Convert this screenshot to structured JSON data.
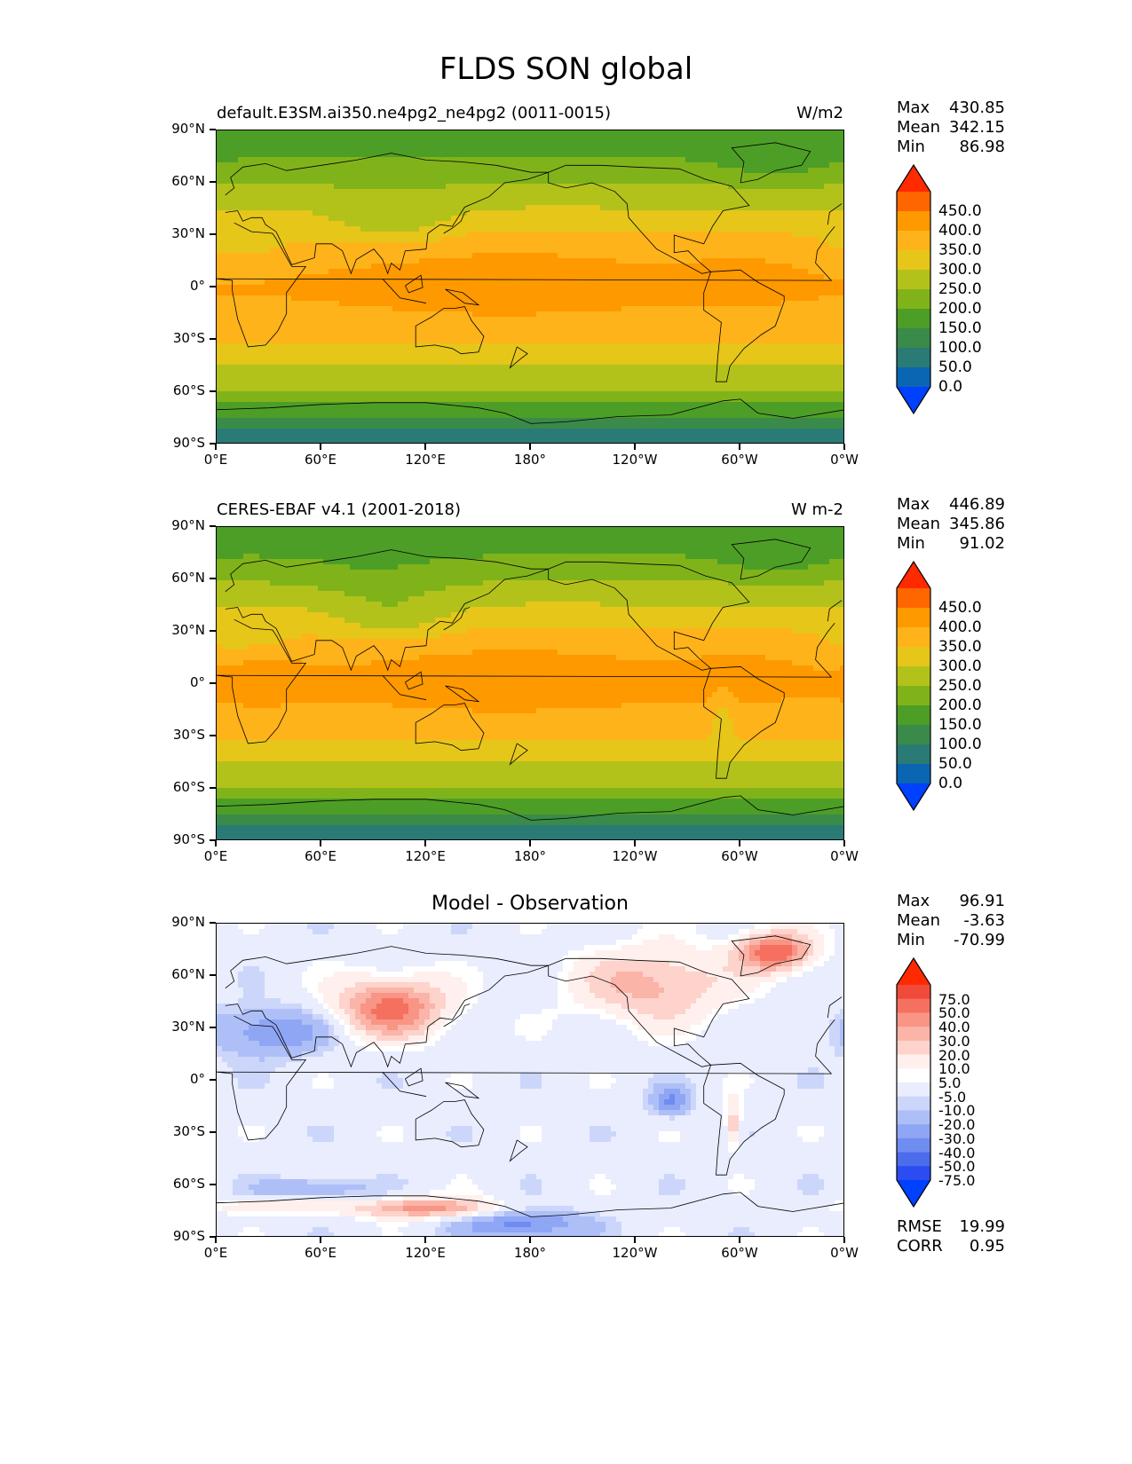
{
  "title": "FLDS SON global",
  "lat_ticks": [
    "90°N",
    "60°N",
    "30°N",
    "0°",
    "30°S",
    "60°S",
    "90°S"
  ],
  "lon_ticks": [
    "0°E",
    "60°E",
    "120°E",
    "180°",
    "120°W",
    "60°W",
    "0°W"
  ],
  "panels": [
    {
      "name": "test",
      "title": "default.E3SM.ai350.ne4pg2_ne4pg2 (0011-0015)",
      "units": "W/m2",
      "stats": {
        "max_label": "Max",
        "max": "430.85",
        "mean_label": "Mean",
        "mean": "342.15",
        "min_label": "Min",
        "min": "86.98"
      },
      "colorbar_levels": [
        "450.0",
        "400.0",
        "350.0",
        "300.0",
        "250.0",
        "200.0",
        "150.0",
        "100.0",
        "50.0",
        "0.0"
      ]
    },
    {
      "name": "reference",
      "title": "CERES-EBAF v4.1 (2001-2018)",
      "units": "W m-2",
      "stats": {
        "max_label": "Max",
        "max": "446.89",
        "mean_label": "Mean",
        "mean": "345.86",
        "min_label": "Min",
        "min": "91.02"
      },
      "colorbar_levels": [
        "450.0",
        "400.0",
        "350.0",
        "300.0",
        "250.0",
        "200.0",
        "150.0",
        "100.0",
        "50.0",
        "0.0"
      ]
    },
    {
      "name": "difference",
      "title": "Model - Observation",
      "units": "",
      "stats": {
        "max_label": "Max",
        "max": "96.91",
        "mean_label": "Mean",
        "mean": "-3.63",
        "min_label": "Min",
        "min": "-70.99"
      },
      "colorbar_levels": [
        "75.0",
        "50.0",
        "40.0",
        "30.0",
        "20.0",
        "10.0",
        "5.0",
        "-5.0",
        "-10.0",
        "-20.0",
        "-30.0",
        "-40.0",
        "-50.0",
        "-75.0"
      ],
      "metrics": {
        "rmse_label": "RMSE",
        "rmse": "19.99",
        "corr_label": "CORR",
        "corr": "0.95"
      }
    }
  ],
  "colors": {
    "abs_scale": [
      "#ff2a00",
      "#ff6600",
      "#ff9900",
      "#ffb31a",
      "#e6c619",
      "#b3c21a",
      "#80b31a",
      "#4d9e26",
      "#3a8a4a",
      "#2a7a75",
      "#0a66b3",
      "#0040ff"
    ],
    "diff_scale": [
      "#ff2a00",
      "#f04a3a",
      "#f5705f",
      "#f89585",
      "#fbb4a8",
      "#fdd3cc",
      "#fff0ed",
      "#ffffff",
      "#e9edfd",
      "#ccd6fb",
      "#aebff8",
      "#8fa6f4",
      "#6f8cf0",
      "#4c6cec",
      "#2a4cf0",
      "#0040ff"
    ]
  }
}
